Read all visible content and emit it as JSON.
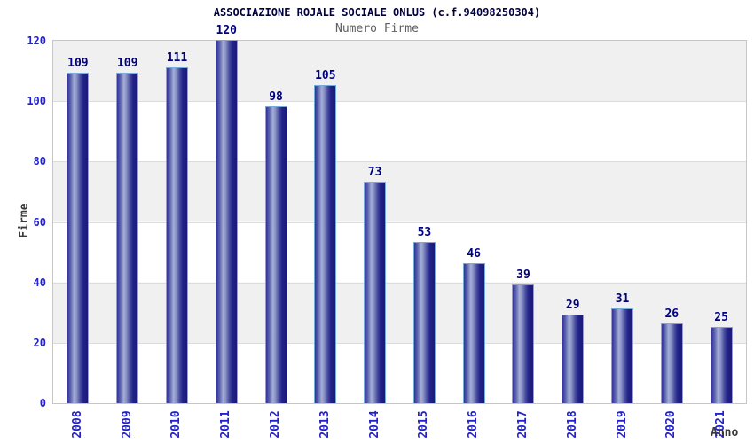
{
  "chart_data": {
    "type": "bar",
    "title": "ASSOCIAZIONE ROJALE SOCIALE ONLUS (c.f.94098250304)",
    "subtitle": "Numero Firme",
    "xlabel": "Anno",
    "ylabel": "Firme",
    "categories": [
      "2008",
      "2009",
      "2010",
      "2011",
      "2012",
      "2013",
      "2014",
      "2015",
      "2016",
      "2017",
      "2018",
      "2019",
      "2020",
      "2021"
    ],
    "values": [
      109,
      109,
      111,
      120,
      98,
      105,
      73,
      53,
      46,
      39,
      29,
      31,
      26,
      25
    ],
    "ylim": [
      0,
      120
    ],
    "yticks": [
      0,
      20,
      40,
      60,
      80,
      100,
      120
    ],
    "grid": "horizontal gridlines every 20, alternating shaded bands",
    "legend_position": "none",
    "bar_value_labels_shown": true,
    "colors": {
      "bar_dark": "#1a1a78",
      "bar_light": "#a6aed6",
      "bar_border": "#74aade",
      "band_shade": "#f0f0f0",
      "plot_border": "#c6c6c6",
      "gridline": "#dcdcdc",
      "tick_text": "#2222cc",
      "value_text": "#000080",
      "title_text": "#000040",
      "subtitle_text": "#606060",
      "axis_title_text": "#3a3a3a",
      "background": "#ffffff"
    }
  }
}
